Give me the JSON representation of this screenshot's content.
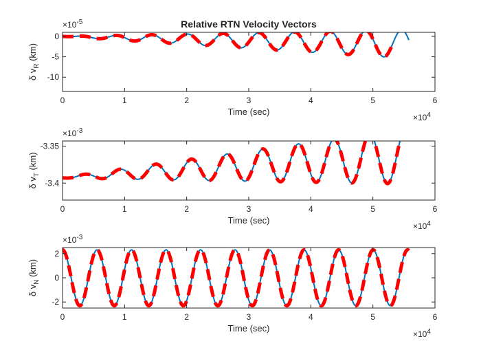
{
  "figure": {
    "title": "Relative RTN Velocity Vectors"
  },
  "chart_data": [
    {
      "type": "line",
      "name_hint": "radial",
      "title": "Relative RTN Velocity Vectors",
      "xlabel": "Time (sec)",
      "ylabel_prefix": "δ v",
      "ylabel_sub": "R",
      "ylabel_suffix": " (km)",
      "xlim": [
        0,
        60000
      ],
      "ylim": [
        -0.000135,
        1e-05
      ],
      "xticks": [
        0,
        10000,
        20000,
        30000,
        40000,
        50000,
        60000
      ],
      "xtick_labels": [
        "0",
        "1",
        "2",
        "3",
        "4",
        "5",
        "6"
      ],
      "x_exponent_label": "×10",
      "x_exponent_power": "4",
      "yticks": [
        0,
        -5e-05,
        -0.0001
      ],
      "ytick_labels": [
        "0",
        "-5",
        "-10"
      ],
      "y_exponent_label": "×10",
      "y_exponent_power": "-5",
      "model": {
        "kind": "growing_oscillation",
        "x_end": 55800,
        "period": 5750,
        "phase0": 1.5708,
        "amp_start": 0.0,
        "amp_rate": 6.3e-10,
        "drift_rate": -9.7e-10,
        "offset": 0
      },
      "series": [
        {
          "name": "",
          "style": "solid",
          "color": "#0072BD",
          "width": 2
        },
        {
          "name": "",
          "style": "dashed",
          "color": "#FF0000",
          "width": 5,
          "x_end": 53000
        }
      ],
      "grid": false
    },
    {
      "type": "line",
      "name_hint": "along-track",
      "xlabel": "Time (sec)",
      "ylabel_prefix": "δ v",
      "ylabel_sub": "T",
      "ylabel_suffix": " (km)",
      "xlim": [
        0,
        60000
      ],
      "ylim": [
        -0.003423,
        -0.003343
      ],
      "xticks": [
        0,
        10000,
        20000,
        30000,
        40000,
        50000,
        60000
      ],
      "xtick_labels": [
        "0",
        "1",
        "2",
        "3",
        "4",
        "5",
        "6"
      ],
      "x_exponent_label": "×10",
      "x_exponent_power": "4",
      "yticks": [
        -0.00335,
        -0.0034
      ],
      "ytick_labels": [
        "-3.35",
        "-3.4"
      ],
      "y_exponent_label": "×10",
      "y_exponent_power": "-3",
      "model": {
        "kind": "growing_oscillation",
        "x_end": 55800,
        "period": 5750,
        "phase0": 0.9,
        "amp_start": 4e-07,
        "amp_rate": 6.7e-10,
        "drift_rate": 0,
        "offset": -0.003393
      },
      "series": [
        {
          "name": "",
          "style": "solid",
          "color": "#0072BD",
          "width": 2
        },
        {
          "name": "",
          "style": "dashed",
          "color": "#FF0000",
          "width": 5
        }
      ],
      "grid": false
    },
    {
      "type": "line",
      "name_hint": "normal",
      "xlabel": "Time (sec)",
      "ylabel_prefix": "δ v",
      "ylabel_sub": "N",
      "ylabel_suffix": " (km)",
      "xlim": [
        0,
        60000
      ],
      "ylim": [
        -0.0025,
        0.0025
      ],
      "xticks": [
        0,
        10000,
        20000,
        30000,
        40000,
        50000,
        60000
      ],
      "xtick_labels": [
        "0",
        "1",
        "2",
        "3",
        "4",
        "5",
        "6"
      ],
      "x_exponent_label": "×10",
      "x_exponent_power": "4",
      "yticks": [
        0.002,
        0,
        -0.002
      ],
      "ytick_labels": [
        "2",
        "0",
        "-2"
      ],
      "y_exponent_label": "×10",
      "y_exponent_power": "-3",
      "model": {
        "kind": "cosine",
        "x_end": 55800,
        "period": 5560,
        "amplitude": 0.00231,
        "offset": 0
      },
      "series": [
        {
          "name": "",
          "style": "solid",
          "color": "#0072BD",
          "width": 2
        },
        {
          "name": "",
          "style": "dashed",
          "color": "#FF0000",
          "width": 5
        }
      ],
      "grid": false
    }
  ]
}
